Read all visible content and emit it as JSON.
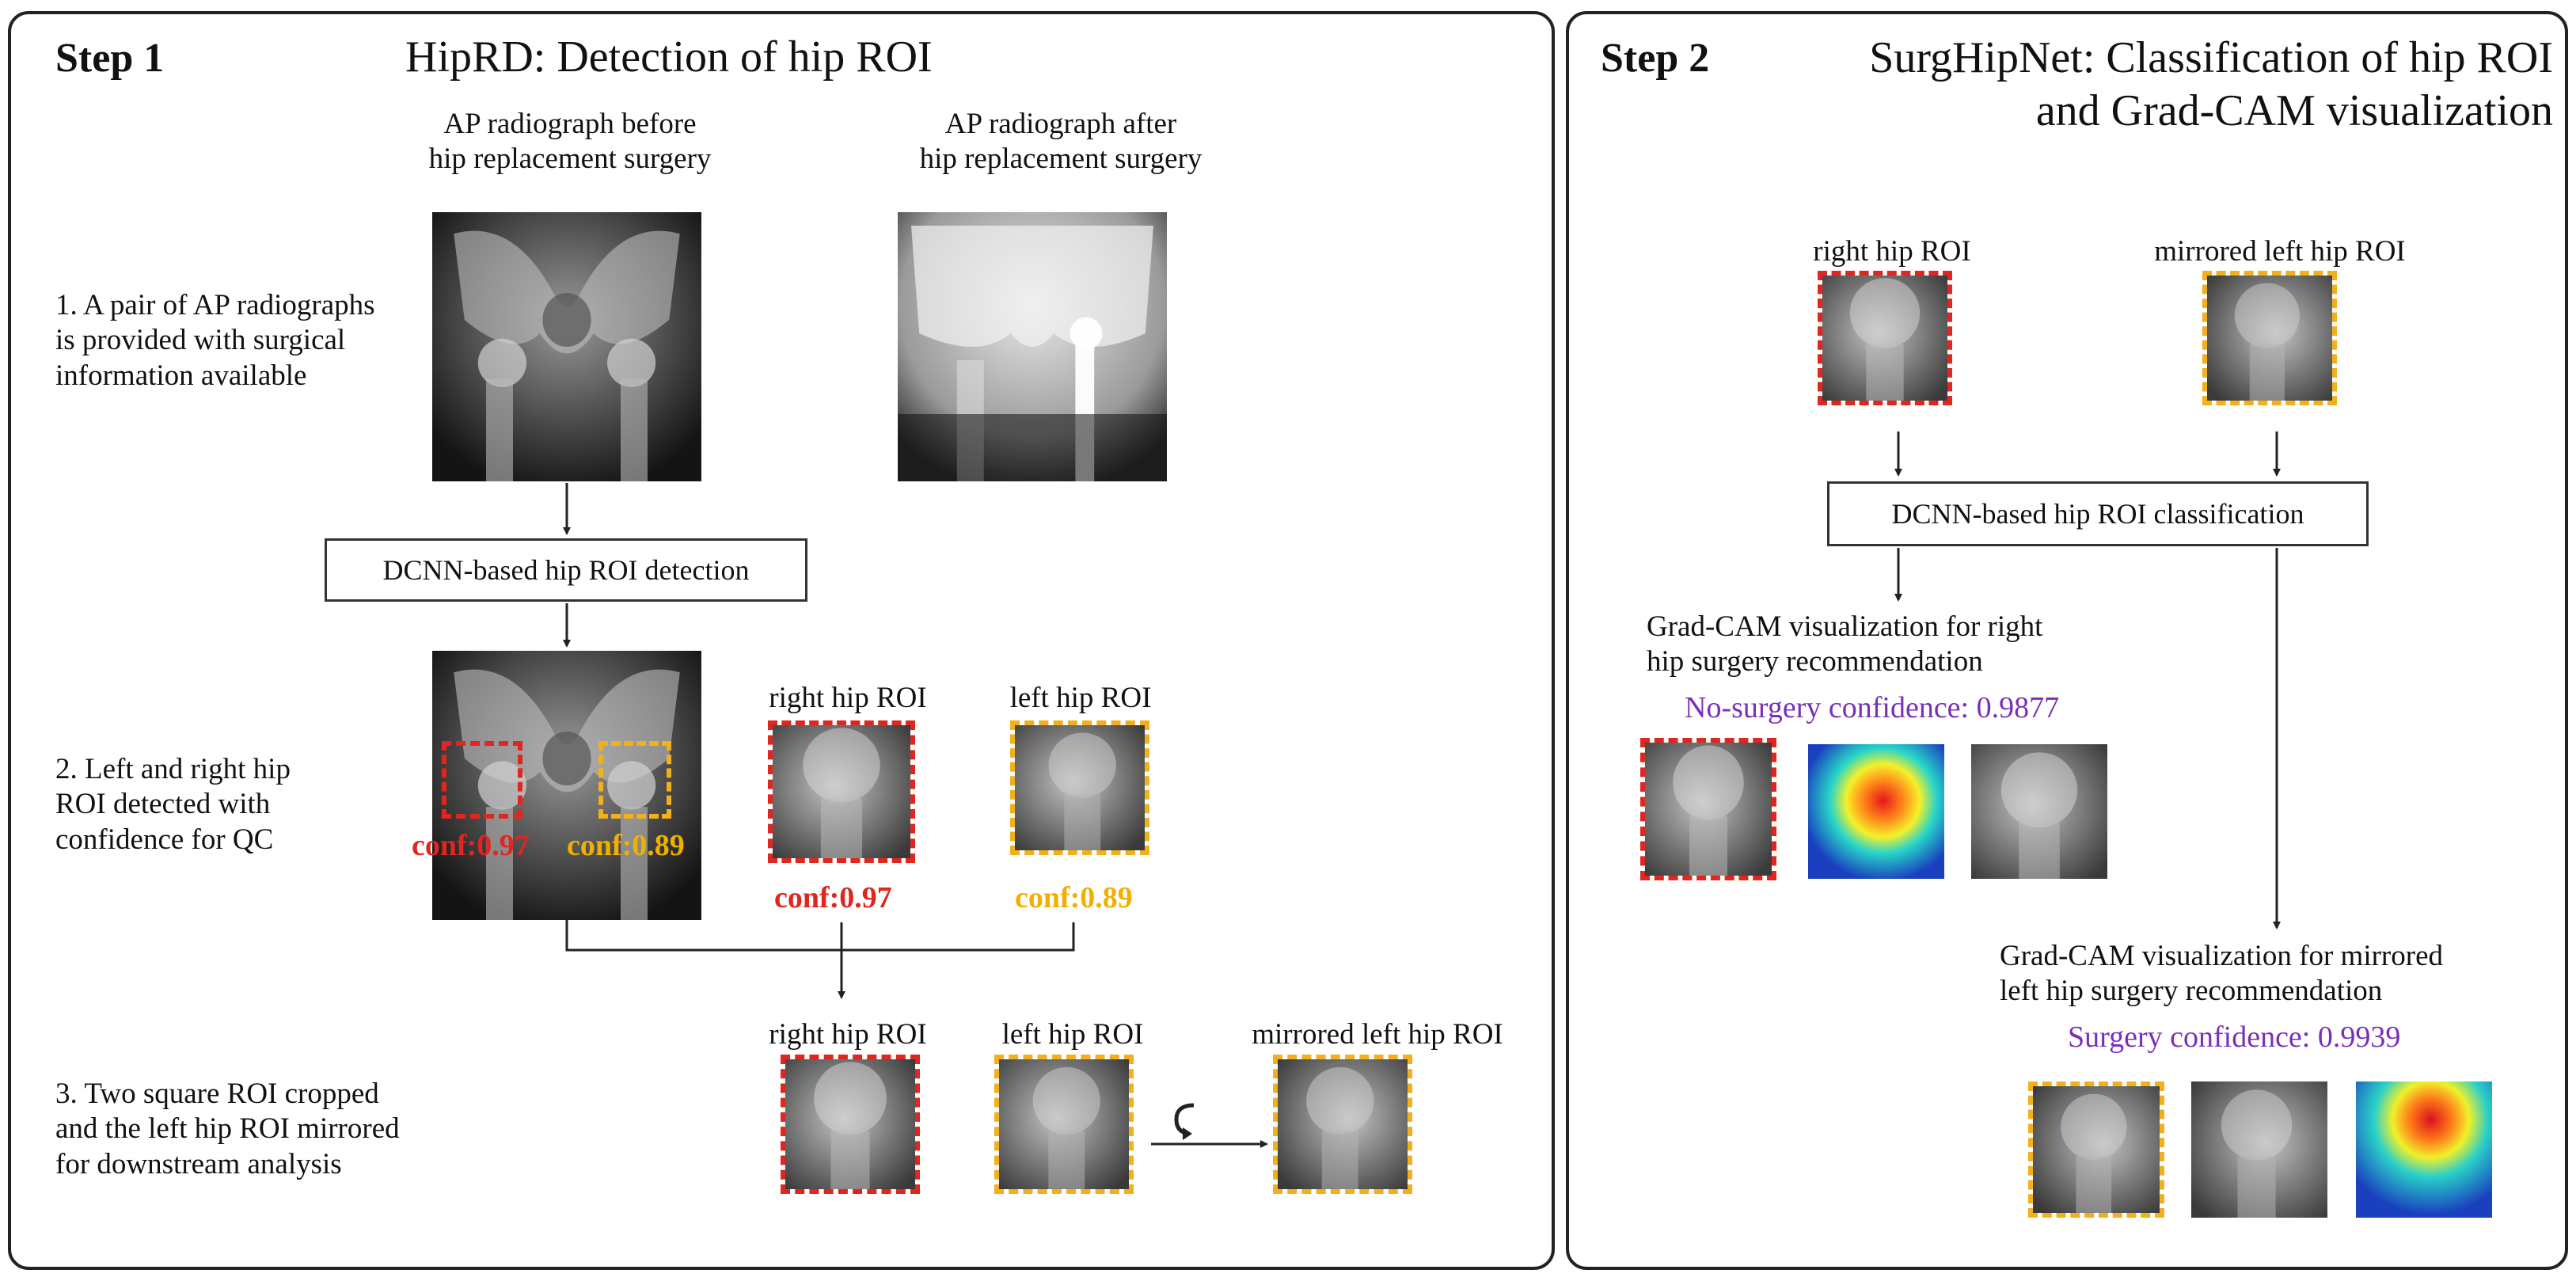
{
  "step1": {
    "label": "Step 1",
    "title": "HipRD: Detection of hip ROI",
    "before_caption_line1": "AP radiograph before",
    "before_caption_line2": "hip replacement surgery",
    "after_caption_line1": "AP radiograph after",
    "after_caption_line2": "hip replacement surgery",
    "desc1_line1": "1. A pair of AP radiographs",
    "desc1_line2": "is provided with surgical",
    "desc1_line3": "information available",
    "detection_box": "DCNN-based hip ROI detection",
    "desc2_line1": "2. Left and right hip",
    "desc2_line2": "ROI detected with",
    "desc2_line3": "confidence for QC",
    "conf_red": "conf:0.97",
    "conf_yellow": "conf:0.89",
    "right_roi_label": "right hip ROI",
    "left_roi_label": "left hip ROI",
    "mirrored_roi_label": "mirrored left hip ROI",
    "desc3_line1": "3. Two square ROI cropped",
    "desc3_line2": "and the left hip ROI mirrored",
    "desc3_line3": "for downstream analysis"
  },
  "step2": {
    "label": "Step 2",
    "title_line1": "SurgHipNet: Classification of hip ROI",
    "title_line2": "and Grad-CAM visualization",
    "right_roi_label": "right hip ROI",
    "mirrored_roi_label": "mirrored left hip ROI",
    "classification_box": "DCNN-based hip ROI classification",
    "gradcam_right_line1": "Grad-CAM visualization for right",
    "gradcam_right_line2": "hip surgery recommendation",
    "no_surgery_conf": "No-surgery confidence: 0.9877",
    "gradcam_left_line1": "Grad-CAM visualization for mirrored",
    "gradcam_left_line2": "left hip surgery recommendation",
    "surgery_conf": "Surgery confidence: 0.9939"
  },
  "colors": {
    "red": "#e0261f",
    "yellow": "#f2b01c",
    "purple": "#7b2fb8"
  }
}
